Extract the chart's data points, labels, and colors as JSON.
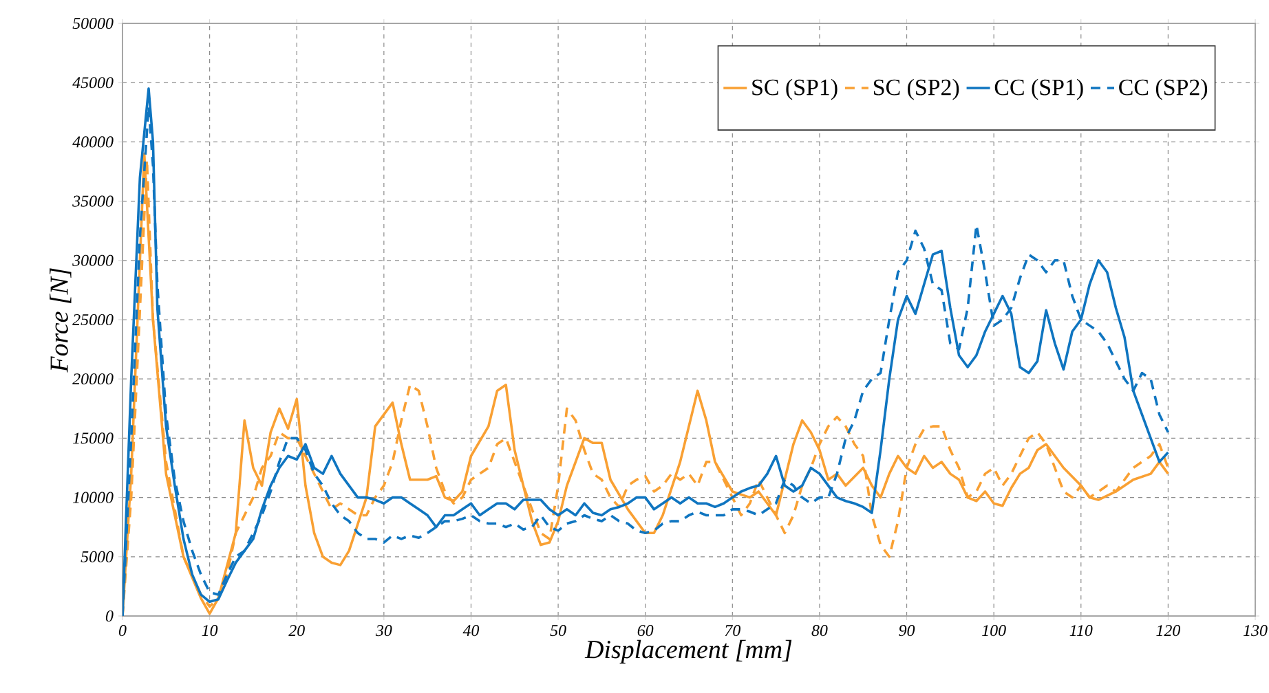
{
  "chart_data": {
    "type": "line",
    "xlabel": "Displacement [mm]",
    "ylabel": "Force [N]",
    "xlim": [
      0,
      130
    ],
    "xticks": [
      0,
      10,
      20,
      30,
      40,
      50,
      60,
      70,
      80,
      90,
      100,
      110,
      120,
      130
    ],
    "ylim": [
      0,
      50000
    ],
    "yticks": [
      0,
      5000,
      10000,
      15000,
      20000,
      25000,
      30000,
      35000,
      40000,
      45000,
      50000
    ],
    "grid": true,
    "legend": "top right",
    "series": [
      {
        "name": "SC (SP1)",
        "color": "#f9a033",
        "line_style": "solid",
        "x": [
          0,
          1,
          2.5,
          3.5,
          5,
          7,
          9,
          10,
          11,
          13,
          14,
          15,
          16,
          17,
          18,
          19,
          20,
          21,
          22,
          23,
          24,
          25,
          26,
          28,
          29,
          30,
          31,
          32,
          33,
          35,
          36,
          37,
          38,
          39,
          40,
          42,
          43,
          44,
          45,
          46,
          47,
          48,
          49,
          50,
          51,
          52,
          53,
          54,
          55,
          56,
          58,
          60,
          61,
          62,
          64,
          66,
          67,
          68,
          70,
          72,
          73,
          75,
          77,
          78,
          79,
          80,
          81,
          82,
          83,
          85,
          86,
          87,
          88,
          89,
          90,
          91,
          92,
          93,
          94,
          95,
          96,
          97,
          98,
          99,
          100,
          101,
          102,
          103,
          104,
          105,
          106,
          107,
          108,
          110,
          111,
          112,
          114,
          116,
          118,
          119,
          120
        ],
        "values": [
          0,
          12000,
          39000,
          25000,
          12000,
          5000,
          1500,
          200,
          1500,
          7000,
          16500,
          12500,
          11000,
          15500,
          17500,
          15800,
          18300,
          11000,
          7000,
          5000,
          4500,
          4300,
          5500,
          10000,
          16000,
          17000,
          18000,
          14500,
          11500,
          11500,
          11800,
          10000,
          9700,
          10500,
          13500,
          16000,
          19000,
          19500,
          14000,
          11000,
          8000,
          6000,
          6200,
          8000,
          11000,
          13000,
          15000,
          14600,
          14600,
          11500,
          9000,
          7000,
          7000,
          8500,
          13000,
          19000,
          16500,
          13000,
          10500,
          10000,
          10500,
          8500,
          14500,
          16500,
          15500,
          14000,
          11500,
          12000,
          11000,
          12500,
          11000,
          10000,
          12000,
          13500,
          12500,
          12000,
          13500,
          12500,
          13000,
          12000,
          11500,
          10000,
          9700,
          10500,
          9500,
          9300,
          10800,
          12000,
          12500,
          14000,
          14500,
          13500,
          12500,
          11000,
          10000,
          9800,
          10500,
          11500,
          12000,
          13000,
          12000
        ]
      },
      {
        "name": "SC (SP2)",
        "color": "#f9a033",
        "line_style": "dashed",
        "x": [
          0,
          1,
          2.8,
          3.5,
          5,
          7,
          9,
          10,
          11,
          12,
          13,
          14,
          15,
          16,
          17,
          18,
          19,
          20,
          21,
          22,
          23,
          24,
          25,
          26,
          27,
          28,
          29,
          30,
          31,
          32,
          33,
          34,
          35,
          36,
          37,
          38,
          39,
          40,
          41,
          42,
          43,
          44,
          45,
          46,
          47,
          48,
          49,
          50,
          51,
          52,
          53,
          54,
          55,
          56,
          57,
          58,
          59,
          60,
          61,
          62,
          63,
          64,
          65,
          66,
          67,
          68,
          69,
          70,
          71,
          72,
          73,
          74,
          75,
          76,
          77,
          78,
          79,
          80,
          81,
          82,
          83,
          84,
          85,
          86,
          87,
          88,
          89,
          90,
          91,
          92,
          93,
          94,
          95,
          96,
          97,
          98,
          99,
          100,
          101,
          102,
          103,
          104,
          105,
          106,
          107,
          108,
          109,
          110,
          111,
          112,
          113,
          114,
          115,
          116,
          117,
          118,
          119,
          120
        ],
        "values": [
          0,
          10000,
          38500,
          25000,
          13000,
          5000,
          1800,
          800,
          1500,
          3500,
          7000,
          8500,
          10000,
          12500,
          13500,
          15500,
          15000,
          15000,
          13500,
          12000,
          10500,
          9000,
          9500,
          9000,
          8500,
          8500,
          10000,
          11000,
          13000,
          16500,
          19500,
          19000,
          16000,
          12500,
          10500,
          9500,
          10000,
          11500,
          12000,
          12500,
          14500,
          15000,
          13000,
          11000,
          9000,
          7000,
          6500,
          11000,
          17500,
          16500,
          14000,
          12000,
          11500,
          10000,
          9200,
          11000,
          11500,
          11800,
          10500,
          11000,
          12000,
          11500,
          12000,
          11000,
          13000,
          13000,
          11500,
          10000,
          8500,
          9500,
          11500,
          10000,
          8500,
          7000,
          8500,
          11000,
          12500,
          14500,
          16000,
          16800,
          16000,
          14500,
          13500,
          8500,
          6000,
          5000,
          8000,
          12500,
          14500,
          15800,
          16000,
          16000,
          14000,
          12500,
          10000,
          10500,
          12000,
          12500,
          11000,
          12000,
          13500,
          15000,
          15500,
          14500,
          12500,
          10500,
          10000,
          11000,
          10000,
          10500,
          11000,
          10500,
          11500,
          12500,
          13000,
          13500,
          14500,
          12500
        ]
      },
      {
        "name": "CC (SP1)",
        "color": "#0f75c0",
        "line_style": "solid",
        "x": [
          0,
          1,
          2,
          3,
          3.5,
          4,
          5,
          6,
          7,
          8,
          9,
          10,
          11,
          12,
          13,
          14,
          15,
          16,
          17,
          18,
          19,
          20,
          21,
          22,
          23,
          24,
          25,
          26,
          27,
          28,
          29,
          30,
          31,
          32,
          33,
          34,
          35,
          36,
          37,
          38,
          39,
          40,
          41,
          42,
          43,
          44,
          45,
          46,
          47,
          48,
          49,
          50,
          51,
          52,
          53,
          54,
          55,
          56,
          57,
          58,
          59,
          60,
          61,
          62,
          63,
          64,
          65,
          66,
          67,
          68,
          69,
          70,
          71,
          72,
          73,
          74,
          75,
          76,
          77,
          78,
          79,
          80,
          81,
          82,
          83,
          84,
          85,
          86,
          87,
          88,
          89,
          90,
          91,
          92,
          93,
          94,
          95,
          96,
          97,
          98,
          99,
          100,
          101,
          102,
          103,
          104,
          105,
          106,
          107,
          108,
          109,
          110,
          111,
          112,
          113,
          114,
          115,
          116,
          117,
          118,
          119,
          120
        ],
        "values": [
          0,
          20000,
          37000,
          44500,
          40000,
          26000,
          16000,
          11000,
          6500,
          3500,
          1800,
          1200,
          1400,
          3000,
          4500,
          5500,
          6500,
          9000,
          11000,
          12500,
          13500,
          13200,
          14500,
          12500,
          12000,
          13500,
          12000,
          11000,
          10000,
          10000,
          9800,
          9500,
          10000,
          10000,
          9500,
          9000,
          8500,
          7500,
          8500,
          8500,
          9000,
          9500,
          8500,
          9000,
          9500,
          9500,
          9000,
          9800,
          9800,
          9800,
          9000,
          8500,
          9000,
          8500,
          9500,
          8700,
          8500,
          9000,
          9200,
          9500,
          10000,
          10000,
          9000,
          9500,
          10000,
          9500,
          10000,
          9500,
          9500,
          9200,
          9500,
          10000,
          10500,
          10800,
          11000,
          12000,
          13500,
          11000,
          10500,
          11000,
          12500,
          12000,
          11000,
          10000,
          9700,
          9500,
          9200,
          8700,
          14000,
          20000,
          25000,
          27000,
          25500,
          28000,
          30500,
          30800,
          26000,
          22000,
          21000,
          22000,
          24000,
          25500,
          27000,
          25500,
          21000,
          20500,
          21500,
          25800,
          23000,
          20800,
          24000,
          25000,
          28000,
          30000,
          29000,
          26000,
          23500,
          19000,
          17000,
          15000,
          13000,
          13800
        ]
      },
      {
        "name": "CC (SP2)",
        "color": "#0f75c0",
        "line_style": "dashed",
        "x": [
          0,
          1,
          2,
          3,
          3.5,
          4,
          5,
          6,
          7,
          8,
          9,
          10,
          11,
          12,
          13,
          14,
          15,
          16,
          17,
          18,
          19,
          20,
          21,
          22,
          23,
          24,
          25,
          26,
          27,
          28,
          29,
          30,
          31,
          32,
          33,
          34,
          35,
          36,
          37,
          38,
          39,
          40,
          41,
          42,
          43,
          44,
          45,
          46,
          47,
          48,
          49,
          50,
          51,
          52,
          53,
          54,
          55,
          56,
          57,
          58,
          59,
          60,
          61,
          62,
          63,
          64,
          65,
          66,
          67,
          68,
          69,
          70,
          71,
          72,
          73,
          74,
          75,
          76,
          77,
          78,
          79,
          80,
          81,
          82,
          83,
          84,
          85,
          86,
          87,
          88,
          89,
          90,
          91,
          92,
          93,
          94,
          95,
          96,
          97,
          98,
          99,
          100,
          101,
          102,
          103,
          104,
          105,
          106,
          107,
          108,
          109,
          110,
          111,
          112,
          113,
          114,
          115,
          116,
          117,
          118,
          119,
          120
        ],
        "values": [
          0,
          15000,
          32000,
          43000,
          38000,
          28000,
          17000,
          11500,
          8000,
          5500,
          3500,
          2000,
          1800,
          3500,
          5000,
          5500,
          7000,
          8500,
          10500,
          13000,
          15000,
          15000,
          14000,
          12000,
          11000,
          9500,
          8500,
          8000,
          7000,
          6500,
          6500,
          6200,
          6800,
          6500,
          6800,
          6600,
          7000,
          7500,
          8000,
          8000,
          8200,
          8500,
          8000,
          7800,
          7800,
          7500,
          7800,
          7300,
          7500,
          8500,
          7500,
          7200,
          7800,
          8000,
          8500,
          8200,
          8000,
          8500,
          8000,
          7800,
          7200,
          7000,
          7200,
          7800,
          8000,
          8000,
          8500,
          8800,
          8500,
          8500,
          8500,
          9000,
          9000,
          8800,
          8500,
          9000,
          9500,
          11500,
          11000,
          10000,
          9500,
          10000,
          10000,
          12000,
          15000,
          16500,
          19000,
          20000,
          20500,
          25000,
          29000,
          30000,
          32500,
          31000,
          28000,
          27500,
          23000,
          22500,
          26000,
          33000,
          29000,
          24500,
          25000,
          26000,
          28500,
          30500,
          30000,
          29000,
          30000,
          30000,
          27000,
          25000,
          24500,
          24000,
          23000,
          21500,
          20000,
          19000,
          20500,
          20000,
          17000,
          15500
        ]
      }
    ]
  }
}
